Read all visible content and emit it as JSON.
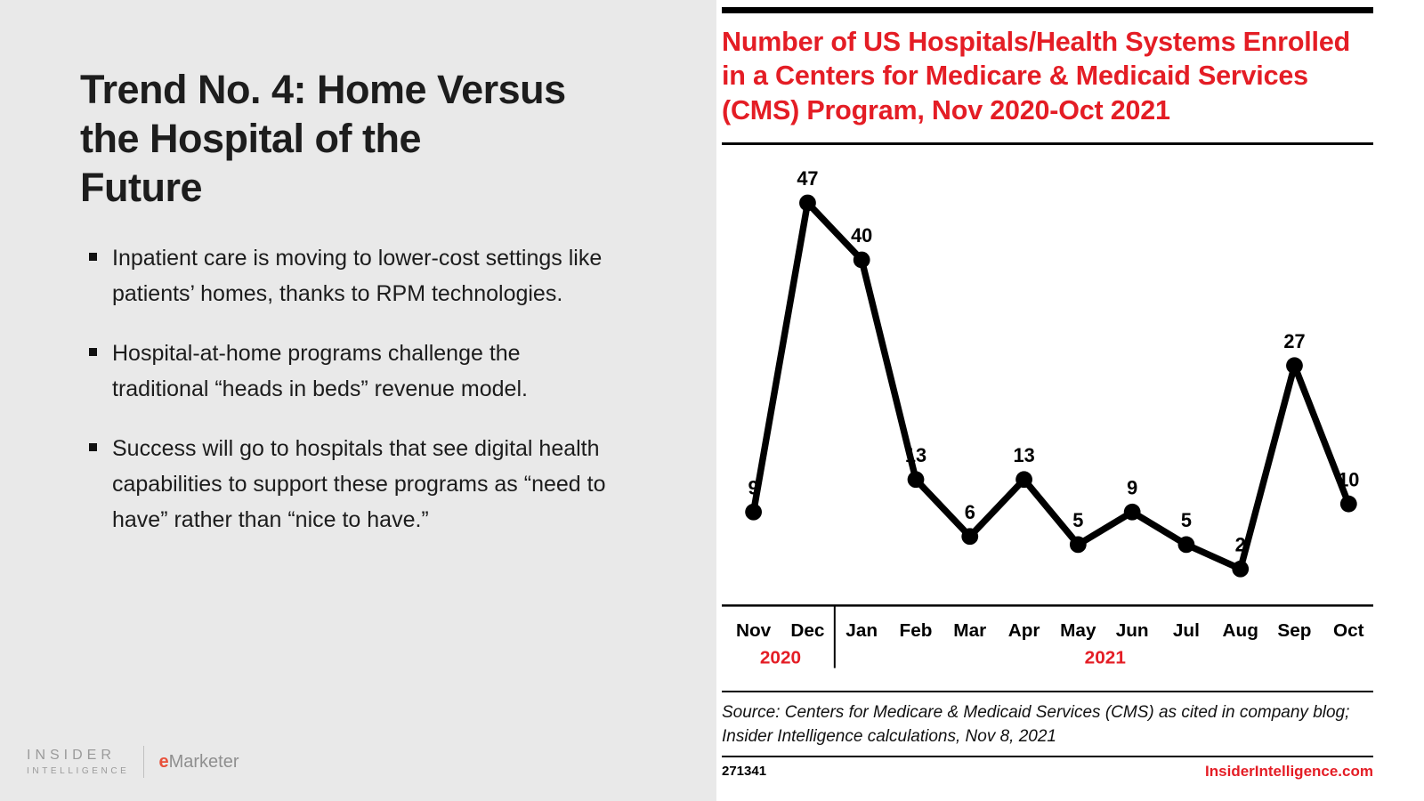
{
  "slide": {
    "title": "Trend No. 4: Home Versus\nthe Hospital of the\nFuture",
    "bullets": [
      "Inpatient care is moving to lower-cost settings like patients’ homes, thanks to RPM technologies.",
      "Hospital-at-home programs challenge the traditional “heads in beds” revenue model.",
      "Success will go to hospitals that see digital health capabilities to support these programs as “need to have” rather than “nice to have.”"
    ]
  },
  "branding": {
    "insider_line1": "INSIDER",
    "insider_line2": "INTELLIGENCE",
    "emarketer_e": "e",
    "emarketer_rest": "Marketer"
  },
  "chart_panel": {
    "heading": "Number of US Hospitals/Health Systems Enrolled in a Centers for Medicare & Medicaid Services (CMS) Program, Nov 2020-Oct 2021",
    "source": "Source: Centers for Medicare & Medicaid Services (CMS) as cited in company blog; Insider Intelligence calculations, Nov 8, 2021",
    "footer_id": "271341",
    "footer_site": "InsiderIntelligence.com",
    "accent_red": "#e41d25"
  },
  "chart_data": {
    "type": "line",
    "title": "Number of US Hospitals/Health Systems Enrolled in a Centers for Medicare & Medicaid Services (CMS) Program, Nov 2020-Oct 2021",
    "categories": [
      "Nov",
      "Dec",
      "Jan",
      "Feb",
      "Mar",
      "Apr",
      "May",
      "Jun",
      "Jul",
      "Aug",
      "Sep",
      "Oct"
    ],
    "values": [
      9,
      47,
      40,
      13,
      6,
      13,
      5,
      9,
      5,
      2,
      27,
      10
    ],
    "year_groups": [
      {
        "label": "2020",
        "months": [
          "Nov",
          "Dec"
        ]
      },
      {
        "label": "2021",
        "months": [
          "Jan",
          "Feb",
          "Mar",
          "Apr",
          "May",
          "Jun",
          "Jul",
          "Aug",
          "Sep",
          "Oct"
        ]
      }
    ],
    "xlabel": "",
    "ylabel": "",
    "ylim": [
      0,
      50
    ],
    "grid": false,
    "legend": false,
    "data_labels": true,
    "line_color": "#000000",
    "point_color": "#000000",
    "label_color": "#000000",
    "year_color": "#e41d25"
  }
}
